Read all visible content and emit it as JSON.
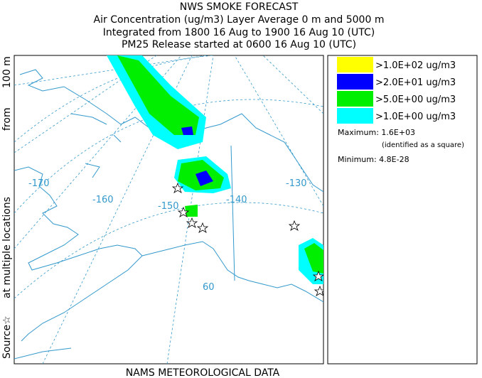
{
  "header": {
    "title": "NWS SMOKE FORECAST",
    "lines": [
      "Air Concentration (ug/m3) Layer Average    0 m and  5000 m",
      "Integrated from 1800 16 Aug to 1900 16 Aug 10 (UTC)",
      "PM25 Release started at 0600 16 Aug 10 (UTC)"
    ]
  },
  "side_label": {
    "source": "Source☆",
    "locations": "at multiple locations",
    "from": "from",
    "height": "100 m"
  },
  "legend": {
    "entries": [
      {
        "label": ">1.0E+02 ug/m3",
        "color": "#ffff00"
      },
      {
        "label": ">2.0E+01 ug/m3",
        "color": "#0000ff"
      },
      {
        "label": ">5.0E+00 ug/m3",
        "color": "#00ee00"
      },
      {
        "label": ">1.0E+00 ug/m3",
        "color": "#00ffff"
      }
    ],
    "maximum": "Maximum: 1.6E+03",
    "maximum_note": "(identified as a square)",
    "minimum": "Minimum: 4.8E-28"
  },
  "map": {
    "labels": [
      "-170",
      "-160",
      "-150",
      "-140",
      "-130",
      "60"
    ]
  },
  "footer": "NAMS METEOROLOGICAL DATA"
}
